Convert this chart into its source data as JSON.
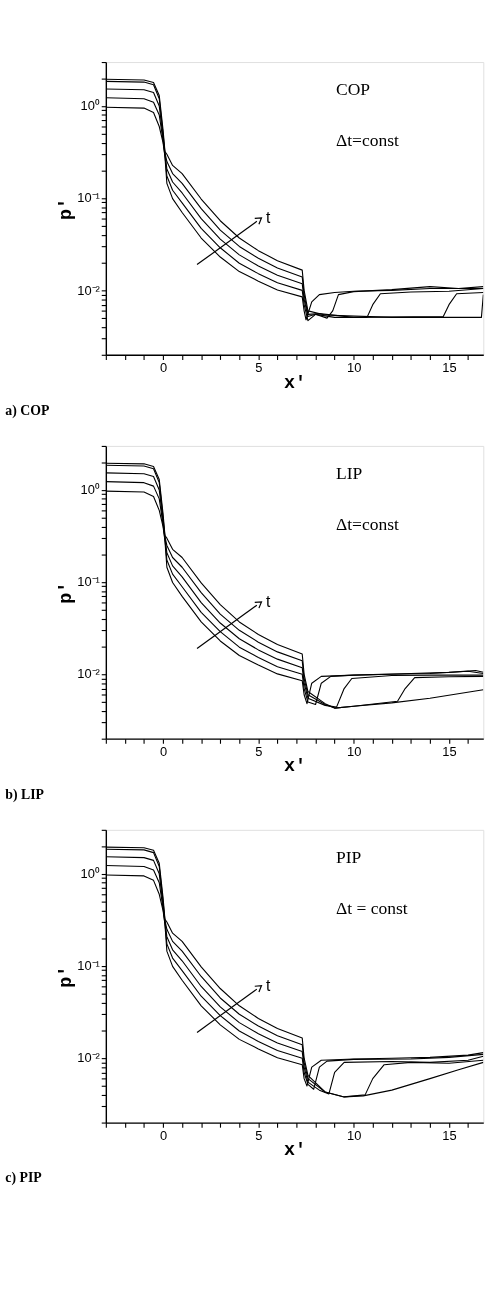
{
  "chart_data": [
    {
      "type": "line",
      "title": "a) COP",
      "xlabel": "x′",
      "ylabel": "p′",
      "log": true,
      "grid": false,
      "legend": false,
      "line_style": "solid",
      "xlim": [
        -3,
        16.8
      ],
      "ylim": [
        0.002,
        3
      ],
      "xticks": [
        {
          "value": -3,
          "label": null
        },
        {
          "value": -2,
          "label": null
        },
        {
          "value": -1,
          "label": null
        },
        0,
        {
          "value": 1,
          "label": null
        },
        {
          "value": 2,
          "label": null
        },
        {
          "value": 3,
          "label": null
        },
        {
          "value": 4,
          "label": null
        },
        5,
        {
          "value": 6,
          "label": null
        },
        {
          "value": 7,
          "label": null
        },
        {
          "value": 8,
          "label": null
        },
        {
          "value": 9,
          "label": null
        },
        10,
        {
          "value": 11,
          "label": null
        },
        {
          "value": 12,
          "label": null
        },
        {
          "value": 13,
          "label": null
        },
        {
          "value": 14,
          "label": null
        },
        15,
        {
          "value": 16,
          "label": null
        }
      ],
      "yticks": [
        {
          "value": 0.002,
          "label": null
        },
        {
          "value": 0.003,
          "label": null
        },
        {
          "value": 0.004,
          "label": null
        },
        {
          "value": 0.005,
          "label": null
        },
        {
          "value": 0.006,
          "label": null
        },
        {
          "value": 0.007,
          "label": null
        },
        {
          "value": 0.008,
          "label": null
        },
        {
          "value": 0.009,
          "label": null
        },
        {
          "value": 0.01,
          "label": "10⁻²"
        },
        {
          "value": 0.02,
          "label": null
        },
        {
          "value": 0.03,
          "label": null
        },
        {
          "value": 0.04,
          "label": null
        },
        {
          "value": 0.05,
          "label": null
        },
        {
          "value": 0.06,
          "label": null
        },
        {
          "value": 0.07,
          "label": null
        },
        {
          "value": 0.08,
          "label": null
        },
        {
          "value": 0.09,
          "label": null
        },
        {
          "value": 0.1,
          "label": "10⁻¹"
        },
        {
          "value": 0.2,
          "label": null
        },
        {
          "value": 0.3,
          "label": null
        },
        {
          "value": 0.4,
          "label": null
        },
        {
          "value": 0.5,
          "label": null
        },
        {
          "value": 0.6,
          "label": null
        },
        {
          "value": 0.7,
          "label": null
        },
        {
          "value": 0.8,
          "label": null
        },
        {
          "value": 0.9,
          "label": null
        },
        {
          "value": 1,
          "label": "10⁰"
        },
        {
          "value": 2,
          "label": null
        },
        {
          "value": 3,
          "label": null
        }
      ],
      "annotations": [
        "COP",
        "Δt=const",
        "t"
      ],
      "series": [
        {
          "color": "#000000",
          "x": [
            -3,
            -1,
            -0.5,
            -0.2,
            0,
            0.1,
            0.2,
            0.5,
            1,
            2,
            3,
            4,
            5,
            6,
            7.3,
            7.4,
            7.5,
            7.8,
            8.2,
            9,
            10,
            12,
            14,
            16.8
          ],
          "values": [
            0.97,
            0.95,
            0.85,
            0.6,
            0.4,
            0.28,
            0.145,
            0.099,
            0.07,
            0.037,
            0.023,
            0.016,
            0.0126,
            0.0101,
            0.0085,
            0.006,
            0.0048,
            0.0075,
            0.009,
            0.0095,
            0.0098,
            0.01,
            0.0105,
            0.0105
          ]
        },
        {
          "color": "#000000",
          "x": [
            -3,
            -1,
            -0.5,
            -0.2,
            0,
            0.1,
            0.2,
            0.5,
            1,
            2,
            3,
            4,
            5,
            6,
            7.3,
            7.4,
            7.6,
            8,
            8.6,
            8.9,
            9.2,
            10,
            12,
            14,
            15.5,
            16.8
          ],
          "values": [
            1.23,
            1.2,
            1.1,
            0.8,
            0.42,
            0.29,
            0.174,
            0.122,
            0.089,
            0.047,
            0.029,
            0.0197,
            0.0152,
            0.0121,
            0.01,
            0.007,
            0.0047,
            0.0055,
            0.005,
            0.006,
            0.009,
            0.0097,
            0.0102,
            0.011,
            0.0105,
            0.011
          ]
        },
        {
          "color": "#000000",
          "x": [
            -3,
            -1,
            -0.5,
            -0.2,
            0,
            0.1,
            0.2,
            0.5,
            1,
            2,
            3,
            4,
            5,
            6,
            7.3,
            7.4,
            7.6,
            8,
            9,
            10.7,
            11,
            11.4,
            13,
            15,
            16.8
          ],
          "values": [
            1.53,
            1.5,
            1.4,
            1.0,
            0.45,
            0.3,
            0.208,
            0.15,
            0.114,
            0.06,
            0.036,
            0.0243,
            0.0184,
            0.0146,
            0.0118,
            0.008,
            0.0052,
            0.0055,
            0.0051,
            0.0051,
            0.007,
            0.0092,
            0.0096,
            0.0098,
            0.0105
          ]
        },
        {
          "color": "#000000",
          "x": [
            -3,
            -1,
            -0.5,
            -0.2,
            0,
            0.1,
            0.2,
            0.5,
            1,
            2,
            3,
            4,
            5,
            6,
            7.3,
            7.4,
            7.6,
            8.2,
            10,
            14.7,
            15,
            15.4,
            16.8
          ],
          "values": [
            1.85,
            1.82,
            1.7,
            1.2,
            0.5,
            0.31,
            0.25,
            0.185,
            0.145,
            0.077,
            0.045,
            0.03,
            0.0223,
            0.0175,
            0.014,
            0.009,
            0.0055,
            0.0056,
            0.0051,
            0.0052,
            0.007,
            0.0092,
            0.0095
          ]
        },
        {
          "color": "#000000",
          "x": [
            -3,
            -1,
            -0.5,
            -0.2,
            0,
            0.1,
            0.2,
            0.5,
            1,
            2,
            3,
            4,
            5,
            6,
            7.3,
            7.4,
            7.6,
            8.5,
            12,
            16.7,
            16.8
          ],
          "values": [
            1.95,
            1.92,
            1.8,
            1.3,
            0.55,
            0.32,
            0.3,
            0.227,
            0.185,
            0.098,
            0.057,
            0.037,
            0.027,
            0.021,
            0.0166,
            0.01,
            0.006,
            0.0054,
            0.0051,
            0.0051,
            0.009
          ]
        }
      ]
    },
    {
      "type": "line",
      "title": "b) LIP",
      "xlabel": "x′",
      "ylabel": "p′",
      "log": true,
      "grid": false,
      "legend": false,
      "line_style": "solid",
      "xlim": [
        -3,
        16.8
      ],
      "ylim": [
        0.002,
        3
      ],
      "xticks": [
        {
          "value": -3,
          "label": null
        },
        {
          "value": -2,
          "label": null
        },
        {
          "value": -1,
          "label": null
        },
        0,
        {
          "value": 1,
          "label": null
        },
        {
          "value": 2,
          "label": null
        },
        {
          "value": 3,
          "label": null
        },
        {
          "value": 4,
          "label": null
        },
        5,
        {
          "value": 6,
          "label": null
        },
        {
          "value": 7,
          "label": null
        },
        {
          "value": 8,
          "label": null
        },
        {
          "value": 9,
          "label": null
        },
        10,
        {
          "value": 11,
          "label": null
        },
        {
          "value": 12,
          "label": null
        },
        {
          "value": 13,
          "label": null
        },
        {
          "value": 14,
          "label": null
        },
        15,
        {
          "value": 16,
          "label": null
        }
      ],
      "yticks": [
        {
          "value": 0.002,
          "label": null
        },
        {
          "value": 0.003,
          "label": null
        },
        {
          "value": 0.004,
          "label": null
        },
        {
          "value": 0.005,
          "label": null
        },
        {
          "value": 0.006,
          "label": null
        },
        {
          "value": 0.007,
          "label": null
        },
        {
          "value": 0.008,
          "label": null
        },
        {
          "value": 0.009,
          "label": null
        },
        {
          "value": 0.01,
          "label": "10⁻²"
        },
        {
          "value": 0.02,
          "label": null
        },
        {
          "value": 0.03,
          "label": null
        },
        {
          "value": 0.04,
          "label": null
        },
        {
          "value": 0.05,
          "label": null
        },
        {
          "value": 0.06,
          "label": null
        },
        {
          "value": 0.07,
          "label": null
        },
        {
          "value": 0.08,
          "label": null
        },
        {
          "value": 0.09,
          "label": null
        },
        {
          "value": 0.1,
          "label": "10⁻¹"
        },
        {
          "value": 0.2,
          "label": null
        },
        {
          "value": 0.3,
          "label": null
        },
        {
          "value": 0.4,
          "label": null
        },
        {
          "value": 0.5,
          "label": null
        },
        {
          "value": 0.6,
          "label": null
        },
        {
          "value": 0.7,
          "label": null
        },
        {
          "value": 0.8,
          "label": null
        },
        {
          "value": 0.9,
          "label": null
        },
        {
          "value": 1,
          "label": "10⁰"
        },
        {
          "value": 2,
          "label": null
        },
        {
          "value": 3,
          "label": null
        }
      ],
      "annotations": [
        "LIP",
        "Δt=const",
        "t"
      ],
      "series": [
        {
          "color": "#000000",
          "x": [
            -3,
            -1,
            -0.5,
            -0.2,
            0,
            0.1,
            0.2,
            0.5,
            1,
            2,
            3,
            4,
            5,
            6,
            7.3,
            7.4,
            7.55,
            7.8,
            8.3,
            10,
            12,
            14,
            16,
            16.8
          ],
          "values": [
            0.97,
            0.95,
            0.85,
            0.6,
            0.4,
            0.28,
            0.145,
            0.099,
            0.07,
            0.037,
            0.023,
            0.016,
            0.0126,
            0.0101,
            0.0085,
            0.006,
            0.0048,
            0.008,
            0.0095,
            0.0098,
            0.01,
            0.0102,
            0.0108,
            0.0102
          ]
        },
        {
          "color": "#000000",
          "x": [
            -3,
            -1,
            -0.5,
            -0.2,
            0,
            0.1,
            0.2,
            0.5,
            1,
            2,
            3,
            4,
            5,
            6,
            7.3,
            7.4,
            7.6,
            8,
            8.3,
            8.8,
            10,
            13,
            15,
            16.4,
            16.8
          ],
          "values": [
            1.23,
            1.2,
            1.1,
            0.8,
            0.42,
            0.29,
            0.174,
            0.122,
            0.089,
            0.047,
            0.029,
            0.0197,
            0.0152,
            0.0121,
            0.01,
            0.007,
            0.005,
            0.0047,
            0.008,
            0.0095,
            0.0098,
            0.0102,
            0.0105,
            0.011,
            0.0105
          ]
        },
        {
          "color": "#000000",
          "x": [
            -3,
            -1,
            -0.5,
            -0.2,
            0,
            0.1,
            0.2,
            0.5,
            1,
            2,
            3,
            4,
            5,
            6,
            7.3,
            7.4,
            7.6,
            8.5,
            9.1,
            9.5,
            9.9,
            12,
            14,
            16.8
          ],
          "values": [
            1.53,
            1.5,
            1.4,
            1.0,
            0.45,
            0.3,
            0.208,
            0.15,
            0.114,
            0.06,
            0.036,
            0.0243,
            0.0184,
            0.0146,
            0.0118,
            0.008,
            0.0055,
            0.0046,
            0.0044,
            0.007,
            0.009,
            0.0097,
            0.0098,
            0.0098
          ]
        },
        {
          "color": "#000000",
          "x": [
            -3,
            -1,
            -0.5,
            -0.2,
            0,
            0.1,
            0.2,
            0.5,
            1,
            2,
            3,
            4,
            5,
            6,
            7.3,
            7.4,
            7.6,
            8.5,
            9,
            10,
            12.3,
            12.7,
            13.2,
            15,
            16.8
          ],
          "values": [
            1.85,
            1.82,
            1.7,
            1.2,
            0.5,
            0.31,
            0.25,
            0.185,
            0.145,
            0.077,
            0.045,
            0.03,
            0.0223,
            0.0175,
            0.014,
            0.009,
            0.006,
            0.0047,
            0.0043,
            0.0045,
            0.0051,
            0.007,
            0.0092,
            0.0094,
            0.0095
          ]
        },
        {
          "color": "#000000",
          "x": [
            -3,
            -1,
            -0.5,
            -0.2,
            0,
            0.1,
            0.2,
            0.5,
            1,
            2,
            3,
            4,
            5,
            6,
            7.3,
            7.4,
            7.6,
            8.5,
            9,
            10,
            12,
            14,
            16.8
          ],
          "values": [
            1.95,
            1.92,
            1.8,
            1.3,
            0.55,
            0.32,
            0.3,
            0.227,
            0.185,
            0.098,
            0.057,
            0.037,
            0.027,
            0.021,
            0.0166,
            0.01,
            0.0065,
            0.0048,
            0.0043,
            0.0045,
            0.0049,
            0.0055,
            0.0068
          ]
        }
      ]
    },
    {
      "type": "line",
      "title": "c) PIP",
      "xlabel": "x′",
      "ylabel": "p′",
      "log": true,
      "grid": false,
      "legend": false,
      "line_style": "solid",
      "xlim": [
        -3,
        16.8
      ],
      "ylim": [
        0.002,
        3
      ],
      "xticks": [
        {
          "value": -3,
          "label": null
        },
        {
          "value": -2,
          "label": null
        },
        {
          "value": -1,
          "label": null
        },
        0,
        {
          "value": 1,
          "label": null
        },
        {
          "value": 2,
          "label": null
        },
        {
          "value": 3,
          "label": null
        },
        {
          "value": 4,
          "label": null
        },
        5,
        {
          "value": 6,
          "label": null
        },
        {
          "value": 7,
          "label": null
        },
        {
          "value": 8,
          "label": null
        },
        {
          "value": 9,
          "label": null
        },
        10,
        {
          "value": 11,
          "label": null
        },
        {
          "value": 12,
          "label": null
        },
        {
          "value": 13,
          "label": null
        },
        {
          "value": 14,
          "label": null
        },
        15,
        {
          "value": 16,
          "label": null
        }
      ],
      "yticks": [
        {
          "value": 0.002,
          "label": null
        },
        {
          "value": 0.003,
          "label": null
        },
        {
          "value": 0.004,
          "label": null
        },
        {
          "value": 0.005,
          "label": null
        },
        {
          "value": 0.006,
          "label": null
        },
        {
          "value": 0.007,
          "label": null
        },
        {
          "value": 0.008,
          "label": null
        },
        {
          "value": 0.009,
          "label": null
        },
        {
          "value": 0.01,
          "label": "10⁻²"
        },
        {
          "value": 0.02,
          "label": null
        },
        {
          "value": 0.03,
          "label": null
        },
        {
          "value": 0.04,
          "label": null
        },
        {
          "value": 0.05,
          "label": null
        },
        {
          "value": 0.06,
          "label": null
        },
        {
          "value": 0.07,
          "label": null
        },
        {
          "value": 0.08,
          "label": null
        },
        {
          "value": 0.09,
          "label": null
        },
        {
          "value": 0.1,
          "label": "10⁻¹"
        },
        {
          "value": 0.2,
          "label": null
        },
        {
          "value": 0.3,
          "label": null
        },
        {
          "value": 0.4,
          "label": null
        },
        {
          "value": 0.5,
          "label": null
        },
        {
          "value": 0.6,
          "label": null
        },
        {
          "value": 0.7,
          "label": null
        },
        {
          "value": 0.8,
          "label": null
        },
        {
          "value": 0.9,
          "label": null
        },
        {
          "value": 1,
          "label": "10⁰"
        },
        {
          "value": 2,
          "label": null
        },
        {
          "value": 3,
          "label": null
        }
      ],
      "annotations": [
        "PIP",
        "Δt = const",
        "t"
      ],
      "series": [
        {
          "color": "#000000",
          "x": [
            -3,
            -1,
            -0.5,
            -0.2,
            0,
            0.1,
            0.2,
            0.5,
            1,
            2,
            3,
            4,
            5,
            6,
            7.3,
            7.4,
            7.55,
            7.8,
            8.3,
            10,
            12,
            14,
            16,
            16.8
          ],
          "values": [
            0.97,
            0.95,
            0.85,
            0.6,
            0.4,
            0.28,
            0.145,
            0.099,
            0.07,
            0.037,
            0.023,
            0.016,
            0.0126,
            0.0101,
            0.0085,
            0.006,
            0.005,
            0.008,
            0.0095,
            0.0098,
            0.01,
            0.0102,
            0.0108,
            0.0115
          ]
        },
        {
          "color": "#000000",
          "x": [
            -3,
            -1,
            -0.5,
            -0.2,
            0,
            0.1,
            0.2,
            0.5,
            1,
            2,
            3,
            4,
            5,
            6,
            7.3,
            7.4,
            7.6,
            7.9,
            8.2,
            8.6,
            10,
            13,
            15,
            16.8
          ],
          "values": [
            1.23,
            1.2,
            1.1,
            0.8,
            0.42,
            0.29,
            0.174,
            0.122,
            0.089,
            0.047,
            0.029,
            0.0197,
            0.0152,
            0.0121,
            0.01,
            0.007,
            0.0052,
            0.0046,
            0.008,
            0.0093,
            0.0097,
            0.0098,
            0.0102,
            0.011
          ]
        },
        {
          "color": "#000000",
          "x": [
            -3,
            -1,
            -0.5,
            -0.2,
            0,
            0.1,
            0.2,
            0.5,
            1,
            2,
            3,
            4,
            5,
            6,
            7.3,
            7.4,
            7.6,
            8.2,
            8.7,
            9,
            9.5,
            12,
            14,
            16,
            16.8
          ],
          "values": [
            1.53,
            1.5,
            1.4,
            1.0,
            0.45,
            0.3,
            0.208,
            0.15,
            0.114,
            0.06,
            0.036,
            0.0243,
            0.0184,
            0.0146,
            0.0118,
            0.008,
            0.0055,
            0.0045,
            0.0041,
            0.007,
            0.009,
            0.0092,
            0.009,
            0.0095,
            0.0105
          ]
        },
        {
          "color": "#000000",
          "x": [
            -3,
            -1,
            -0.5,
            -0.2,
            0,
            0.1,
            0.2,
            0.5,
            1,
            2,
            3,
            4,
            5,
            6,
            7.3,
            7.4,
            7.6,
            8.5,
            9.5,
            10.6,
            11,
            11.6,
            13,
            15,
            16.8
          ],
          "values": [
            1.85,
            1.82,
            1.7,
            1.2,
            0.5,
            0.31,
            0.25,
            0.185,
            0.145,
            0.077,
            0.045,
            0.03,
            0.0223,
            0.0175,
            0.014,
            0.009,
            0.006,
            0.0043,
            0.0038,
            0.004,
            0.006,
            0.0085,
            0.009,
            0.0088,
            0.0095
          ]
        },
        {
          "color": "#000000",
          "x": [
            -3,
            -1,
            -0.5,
            -0.2,
            0,
            0.1,
            0.2,
            0.5,
            1,
            2,
            3,
            4,
            5,
            6,
            7.3,
            7.4,
            7.6,
            8.5,
            9.5,
            10.5,
            12,
            14,
            15.5,
            16.8
          ],
          "values": [
            1.95,
            1.92,
            1.8,
            1.3,
            0.55,
            0.32,
            0.3,
            0.227,
            0.185,
            0.098,
            0.057,
            0.037,
            0.027,
            0.021,
            0.0166,
            0.01,
            0.0065,
            0.0043,
            0.0038,
            0.0039,
            0.0045,
            0.006,
            0.0075,
            0.009
          ]
        }
      ]
    }
  ]
}
